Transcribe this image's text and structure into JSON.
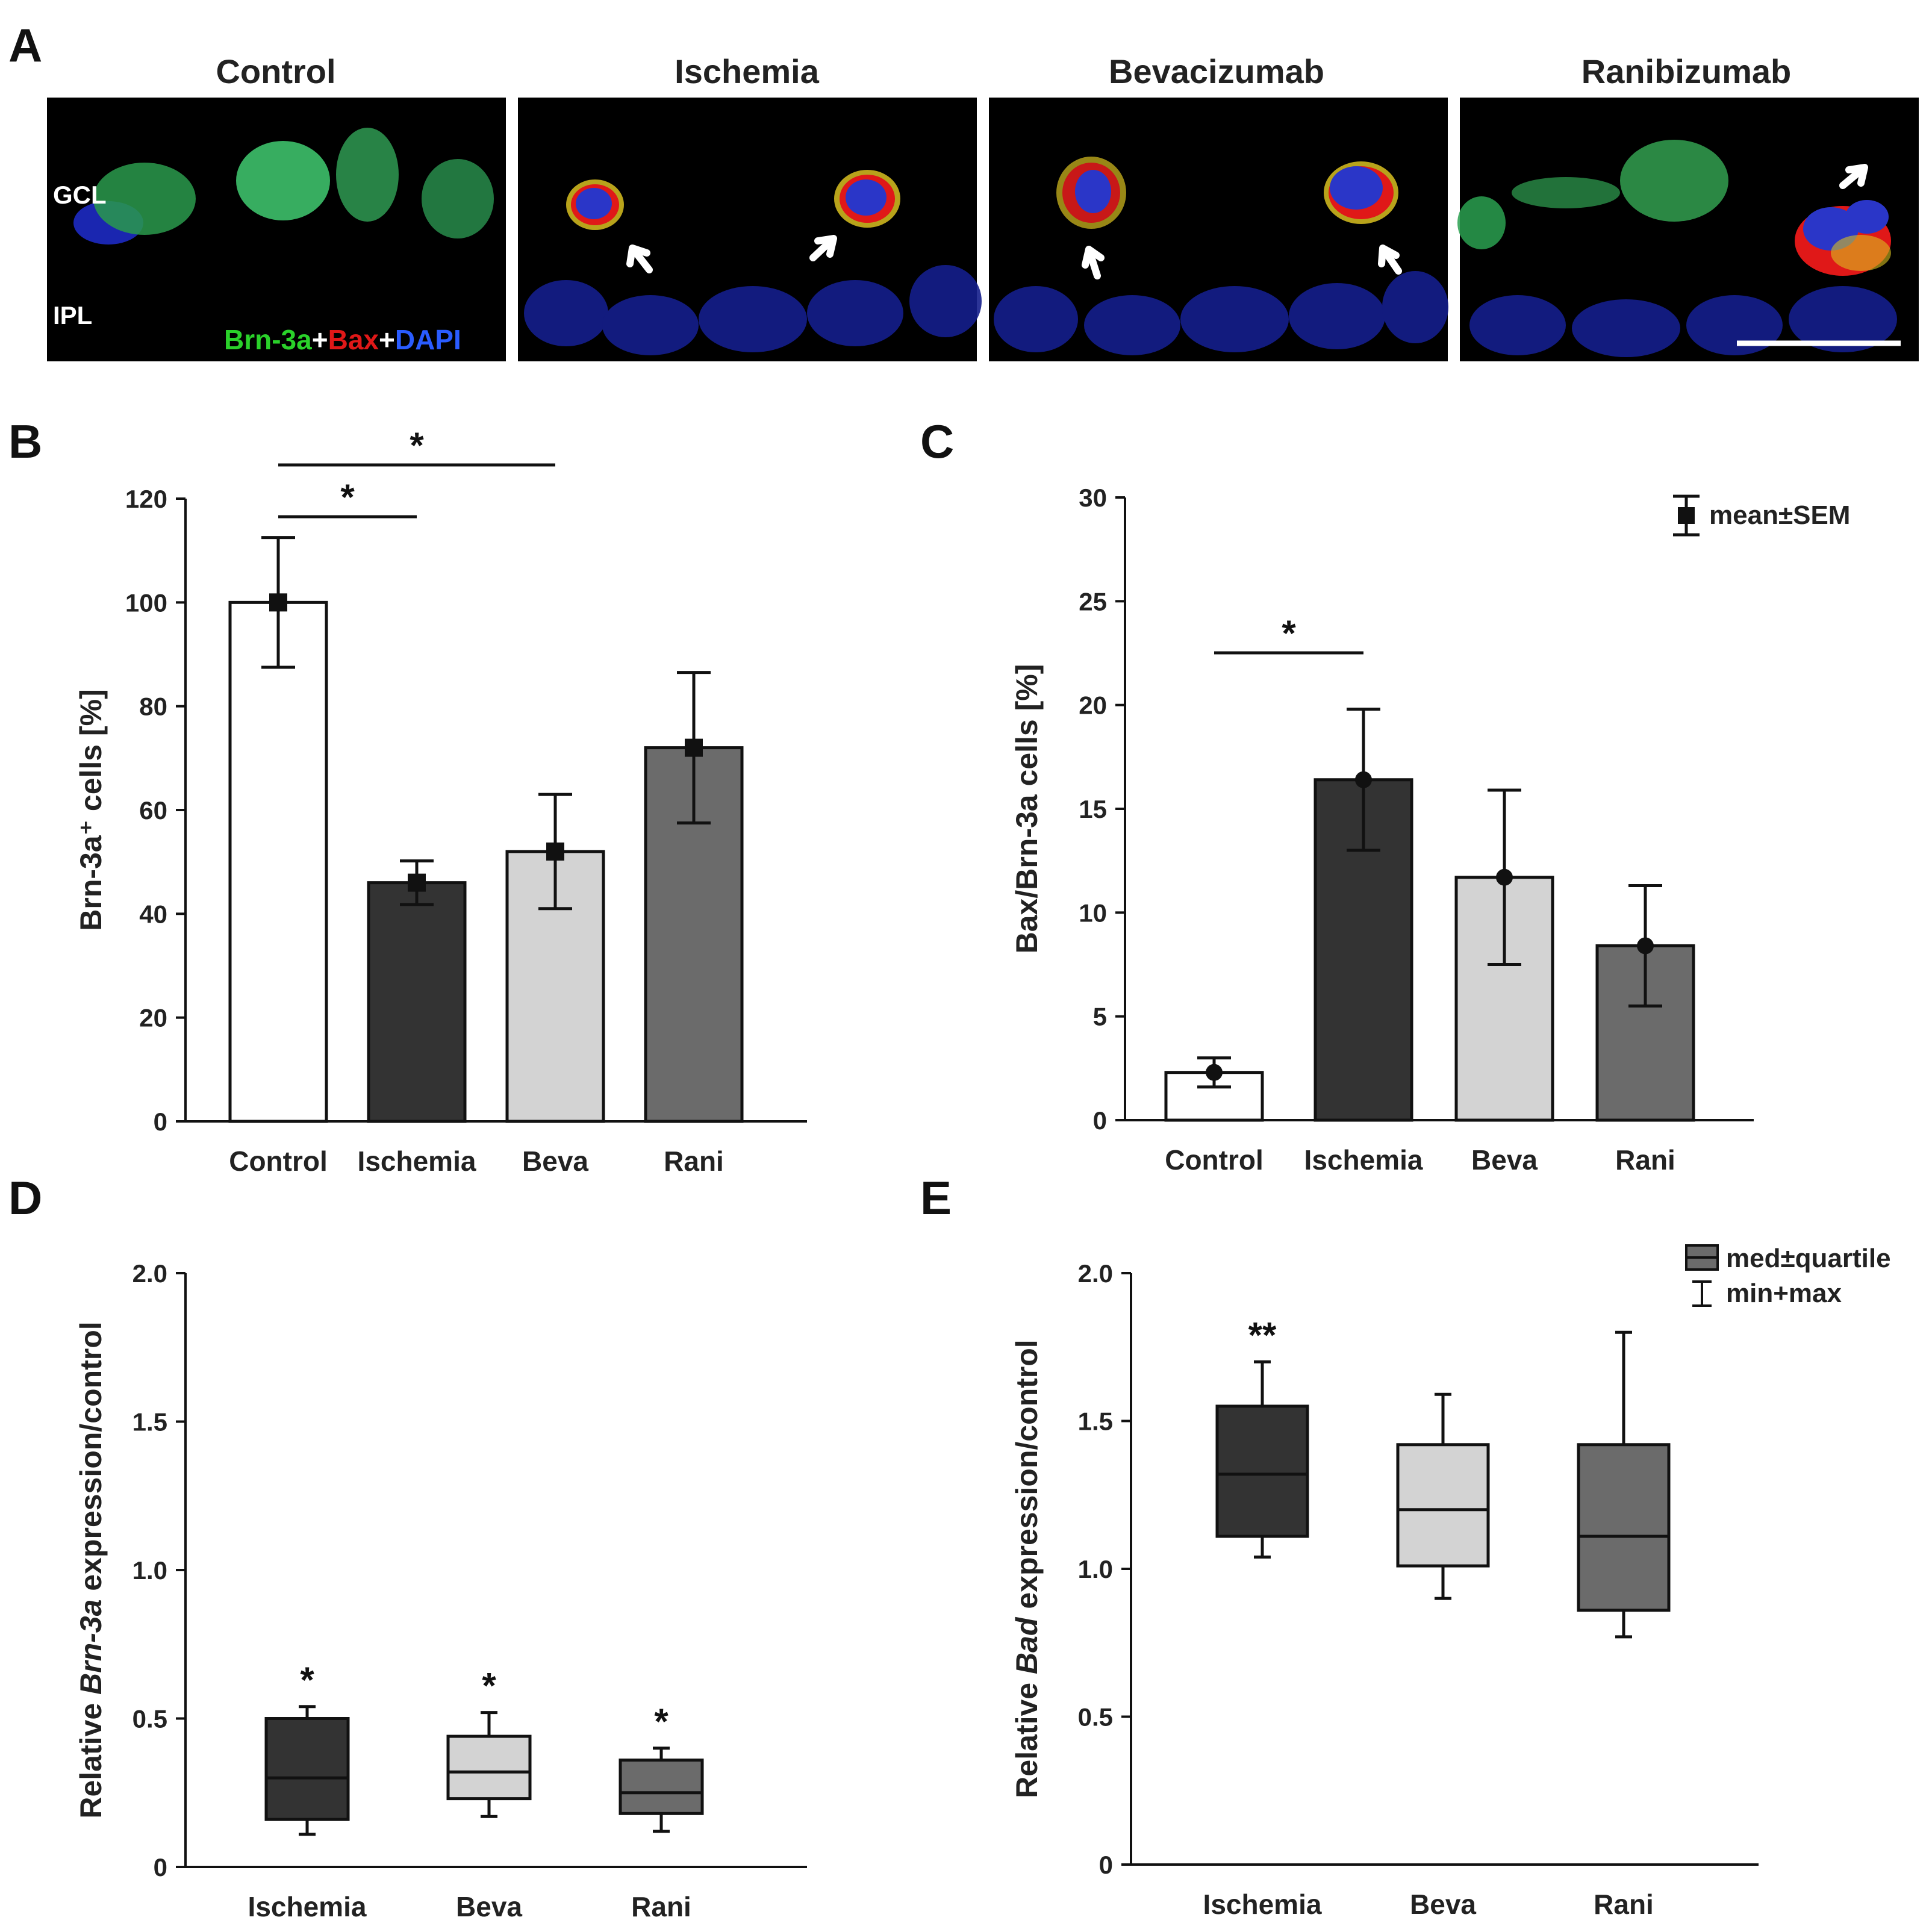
{
  "panel_labels": {
    "A": "A",
    "B": "B",
    "C": "C",
    "D": "D",
    "E": "E"
  },
  "panel_a": {
    "groups": [
      "Control",
      "Ischemia",
      "Bevacizumab",
      "Ranibizumab"
    ],
    "layer_labels": {
      "top": "GCL",
      "bottom": "IPL"
    },
    "stain_legend": [
      {
        "text": "Brn-3a",
        "color": "#2ad12a"
      },
      {
        "text": "+",
        "color": "#ffffff"
      },
      {
        "text": "Bax",
        "color": "#e01818"
      },
      {
        "text": "+",
        "color": "#ffffff"
      },
      {
        "text": "DAPI",
        "color": "#2a5cff"
      }
    ],
    "colors": {
      "nucleus": "#1a26b0",
      "brn3a": "#38c060",
      "bax": "#e01818",
      "overlap": "#d8c020",
      "arrow": "#ffffff"
    }
  },
  "legends": {
    "mean_sem": "mean±SEM",
    "box_median": "med±quartile",
    "box_minmax": "min+max"
  },
  "chart_data": [
    {
      "panel": "B",
      "type": "bar",
      "categories": [
        "Control",
        "Ischemia",
        "Beva",
        "Rani"
      ],
      "values": [
        100,
        46,
        52,
        72
      ],
      "errors": [
        12.5,
        4.2,
        11,
        14.5
      ],
      "colors": [
        "#ffffff",
        "#333333",
        "#d3d3d3",
        "#6b6b6b"
      ],
      "ylabel": "Brn-3a⁺ cells [%]",
      "ylim": [
        0,
        120
      ],
      "yticks": [
        0,
        20,
        40,
        60,
        80,
        100,
        120
      ],
      "significance": [
        {
          "from": "Control",
          "to": "Ischemia",
          "label": "*"
        },
        {
          "from": "Control",
          "to": "Beva",
          "label": "*"
        }
      ]
    },
    {
      "panel": "C",
      "type": "bar",
      "categories": [
        "Control",
        "Ischemia",
        "Beva",
        "Rani"
      ],
      "values": [
        2.3,
        16.4,
        11.7,
        8.4
      ],
      "errors": [
        0.7,
        3.4,
        4.2,
        2.9
      ],
      "colors": [
        "#ffffff",
        "#333333",
        "#d3d3d3",
        "#6b6b6b"
      ],
      "ylabel": "Bax/Brn-3a cells [%]",
      "ylim": [
        0,
        30
      ],
      "yticks": [
        0,
        5,
        10,
        15,
        20,
        25,
        30
      ],
      "significance": [
        {
          "from": "Control",
          "to": "Ischemia",
          "label": "*"
        }
      ]
    },
    {
      "panel": "D",
      "type": "box",
      "categories": [
        "Ischemia",
        "Beva",
        "Rani"
      ],
      "boxes": [
        {
          "min": 0.11,
          "q1": 0.16,
          "median": 0.3,
          "q3": 0.5,
          "max": 0.54,
          "mark": "*"
        },
        {
          "min": 0.17,
          "q1": 0.23,
          "median": 0.32,
          "q3": 0.44,
          "max": 0.52,
          "mark": "*"
        },
        {
          "min": 0.12,
          "q1": 0.18,
          "median": 0.25,
          "q3": 0.36,
          "max": 0.4,
          "mark": "*"
        }
      ],
      "colors": [
        "#333333",
        "#d3d3d3",
        "#6b6b6b"
      ],
      "ylabel_parts": [
        "Relative ",
        "Brn-3a",
        " expression/control"
      ],
      "ylim": [
        0,
        2.0
      ],
      "yticks": [
        "0",
        "0.5",
        "1.0",
        "1.5",
        "2.0"
      ]
    },
    {
      "panel": "E",
      "type": "box",
      "categories": [
        "Ischemia",
        "Beva",
        "Rani"
      ],
      "boxes": [
        {
          "min": 1.04,
          "q1": 1.11,
          "median": 1.32,
          "q3": 1.55,
          "max": 1.7,
          "mark": "**"
        },
        {
          "min": 0.9,
          "q1": 1.01,
          "median": 1.2,
          "q3": 1.42,
          "max": 1.59,
          "mark": ""
        },
        {
          "min": 0.77,
          "q1": 0.86,
          "median": 1.11,
          "q3": 1.42,
          "max": 1.8,
          "mark": ""
        }
      ],
      "colors": [
        "#333333",
        "#d3d3d3",
        "#6b6b6b"
      ],
      "ylabel_parts": [
        "Relative ",
        "Bad",
        " expression/control"
      ],
      "ylim": [
        0,
        2.0
      ],
      "yticks": [
        "0",
        "0.5",
        "1.0",
        "1.5",
        "2.0"
      ]
    }
  ]
}
